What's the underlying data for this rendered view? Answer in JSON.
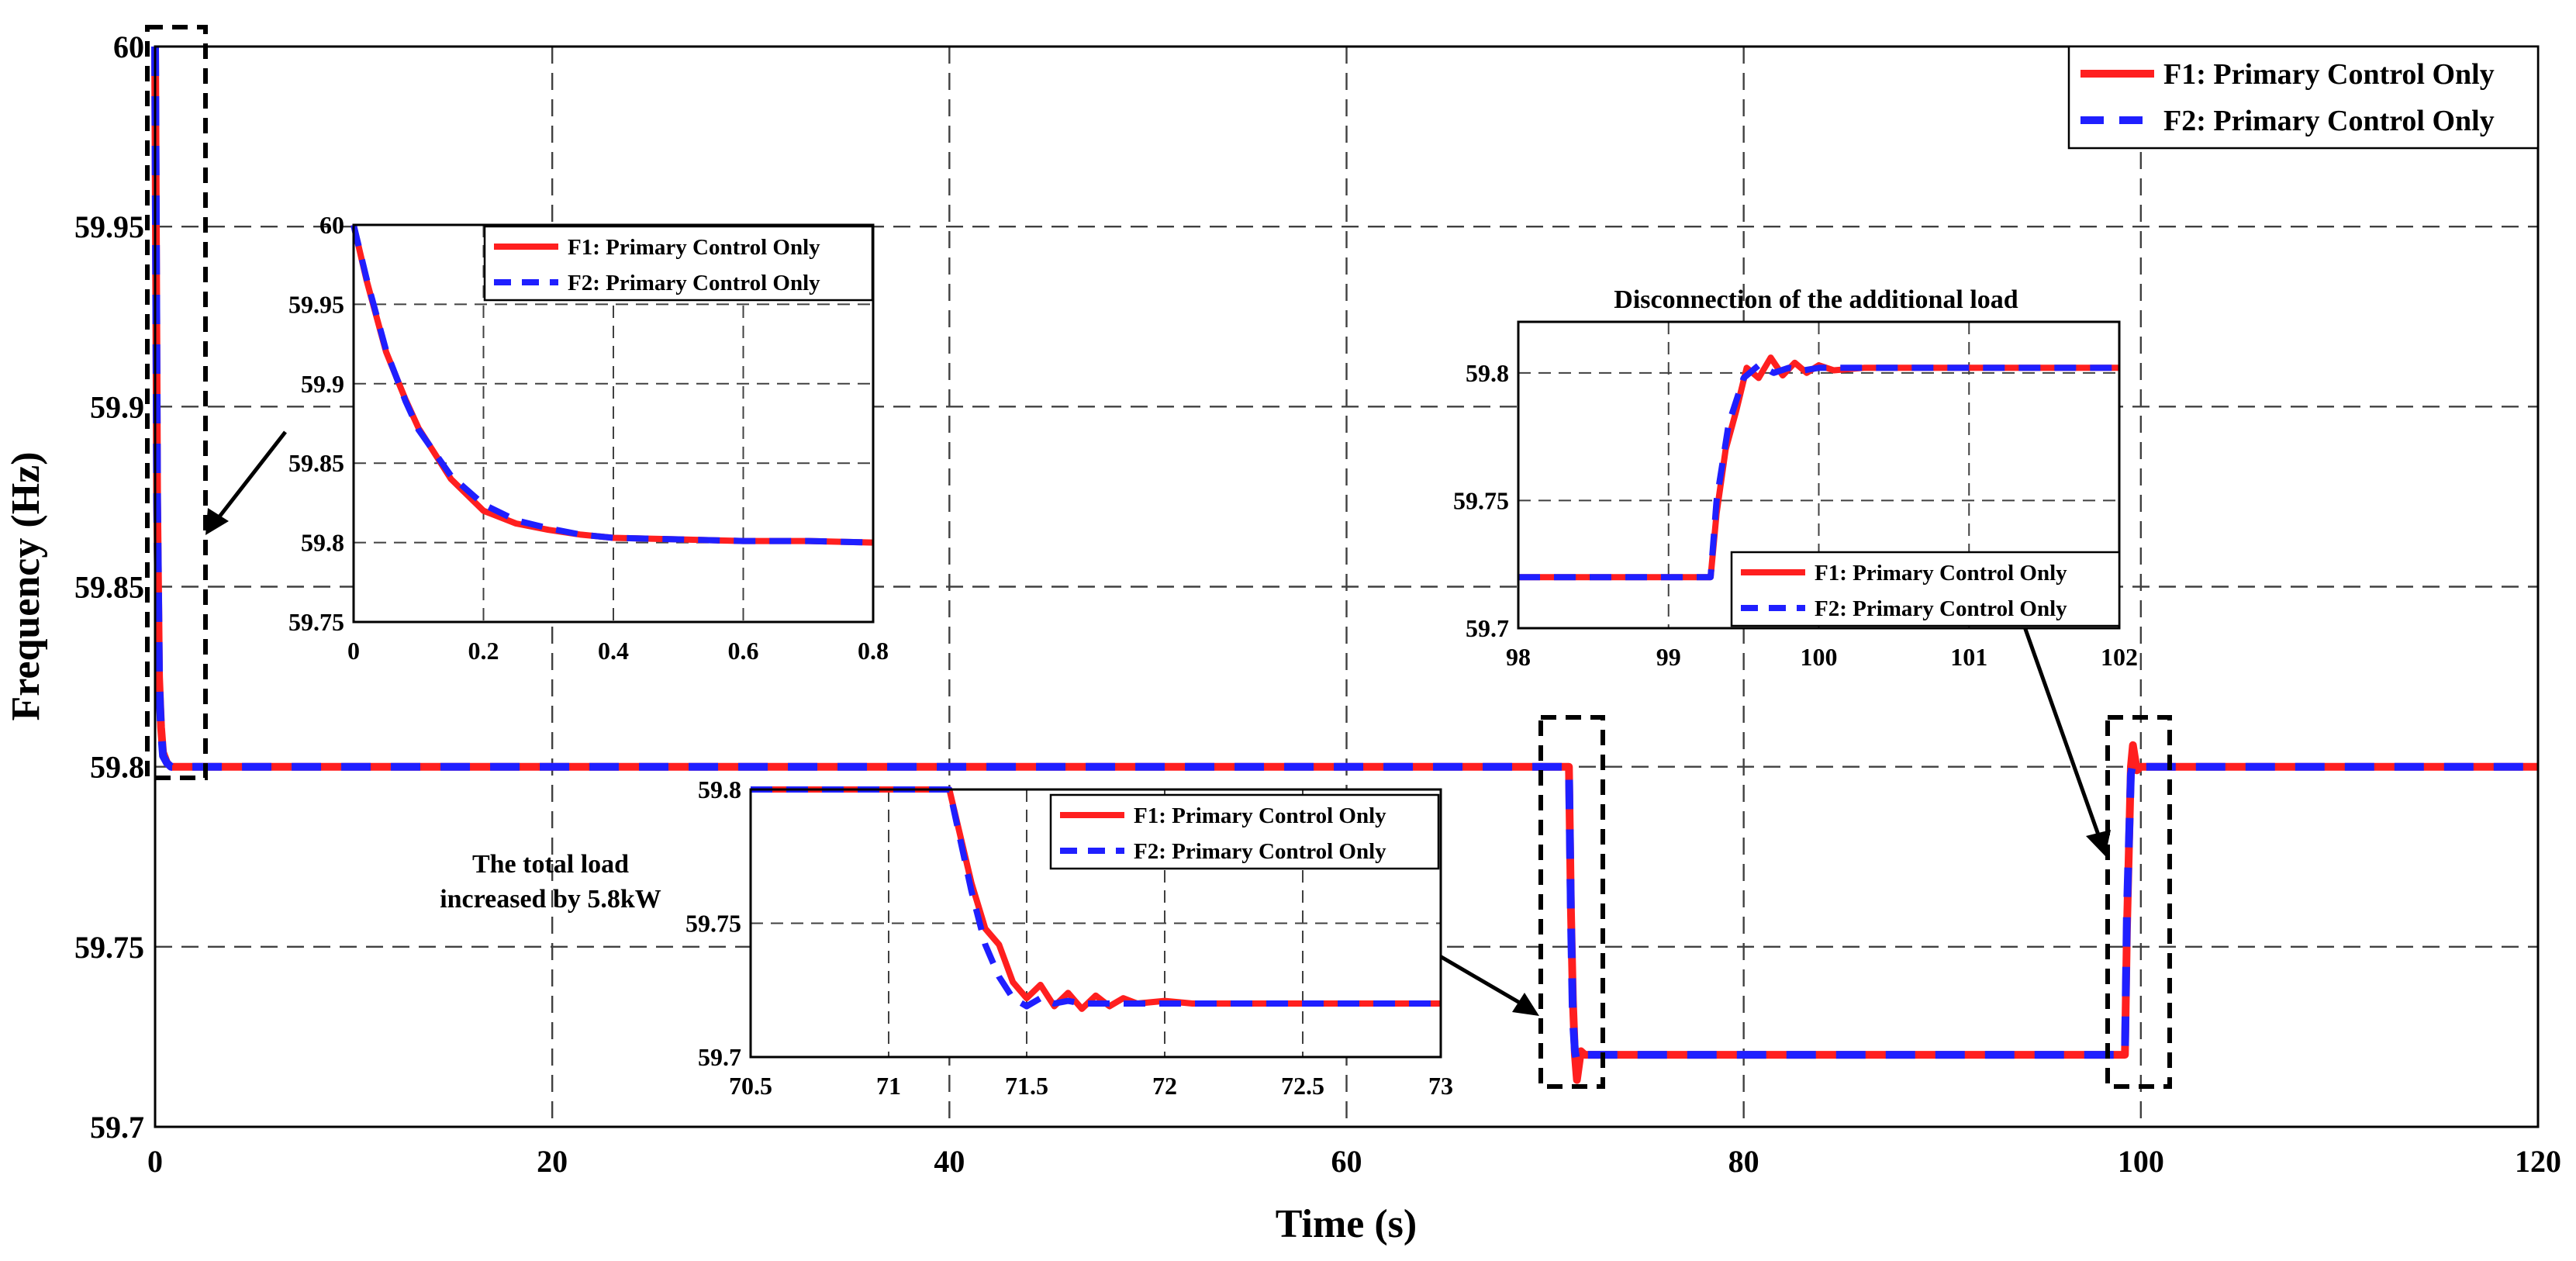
{
  "chart_data": [
    {
      "id": "main",
      "type": "line",
      "title": "",
      "xlabel": "Time (s)",
      "ylabel": "Frequency (Hz)",
      "xlim": [
        0,
        120
      ],
      "ylim": [
        59.7,
        60
      ],
      "xticks": [
        0,
        20,
        40,
        60,
        80,
        100,
        120
      ],
      "yticks": [
        59.7,
        59.75,
        59.8,
        59.85,
        59.9,
        59.95,
        60
      ],
      "ytick_labels": [
        "59.7",
        "59.75",
        "59.8",
        "59.85",
        "59.9",
        "59.95",
        "60"
      ],
      "grid": true,
      "legend_position": "top-right",
      "series": [
        {
          "name": "F1: Primary Control Only",
          "color": "#ff1f1f",
          "style": "solid",
          "x": [
            0,
            0.1,
            0.2,
            0.3,
            0.4,
            0.6,
            0.8,
            71.2,
            71.3,
            71.4,
            71.5,
            71.6,
            71.8,
            72.0,
            99.2,
            99.3,
            99.5,
            99.6,
            99.8,
            100.0,
            120
          ],
          "y": [
            60,
            59.875,
            59.825,
            59.811,
            59.804,
            59.801,
            59.8,
            59.8,
            59.76,
            59.735,
            59.72,
            59.713,
            59.721,
            59.72,
            59.72,
            59.755,
            59.8,
            59.806,
            59.799,
            59.8,
            59.8
          ]
        },
        {
          "name": "F2: Primary Control Only",
          "color": "#1f1fff",
          "style": "dashed",
          "x": [
            0,
            0.1,
            0.2,
            0.3,
            0.4,
            0.6,
            0.8,
            71.2,
            71.3,
            71.4,
            71.5,
            71.6,
            71.8,
            72.0,
            99.2,
            99.3,
            99.5,
            99.6,
            99.8,
            100.0,
            120
          ],
          "y": [
            60,
            59.874,
            59.824,
            59.81,
            59.803,
            59.801,
            59.8,
            59.8,
            59.758,
            59.73,
            59.721,
            59.718,
            59.72,
            59.72,
            59.72,
            59.76,
            59.798,
            59.801,
            59.8,
            59.8,
            59.8
          ]
        }
      ]
    },
    {
      "id": "inset-start",
      "type": "line",
      "title": "",
      "xlim": [
        0,
        0.8
      ],
      "ylim": [
        59.75,
        60
      ],
      "xticks": [
        0,
        0.2,
        0.4,
        0.6,
        0.8
      ],
      "yticks": [
        59.75,
        59.8,
        59.85,
        59.9,
        59.95,
        60
      ],
      "ytick_labels": [
        "59.75",
        "59.8",
        "59.85",
        "59.9",
        "59.95",
        "60"
      ],
      "grid": true,
      "legend_position": "top-right",
      "series": [
        {
          "name": "F1: Primary Control Only",
          "color": "#ff1f1f",
          "style": "solid",
          "x": [
            0,
            0.02,
            0.05,
            0.08,
            0.1,
            0.15,
            0.2,
            0.25,
            0.3,
            0.35,
            0.4,
            0.5,
            0.6,
            0.7,
            0.8
          ],
          "y": [
            60,
            59.965,
            59.92,
            59.89,
            59.872,
            59.84,
            59.82,
            59.812,
            59.808,
            59.805,
            59.803,
            59.802,
            59.801,
            59.801,
            59.8
          ]
        },
        {
          "name": "F2: Primary Control Only",
          "color": "#1f1fff",
          "style": "dashed",
          "x": [
            0,
            0.02,
            0.05,
            0.08,
            0.1,
            0.15,
            0.2,
            0.25,
            0.3,
            0.35,
            0.4,
            0.5,
            0.6,
            0.7,
            0.8
          ],
          "y": [
            60,
            59.966,
            59.921,
            59.889,
            59.871,
            59.842,
            59.824,
            59.814,
            59.809,
            59.805,
            59.803,
            59.802,
            59.801,
            59.801,
            59.8
          ]
        }
      ]
    },
    {
      "id": "inset-load-increase",
      "type": "line",
      "title": "",
      "xlim": [
        70.5,
        73
      ],
      "ylim": [
        59.7,
        59.8
      ],
      "xticks": [
        70.5,
        71,
        71.5,
        72,
        72.5,
        73
      ],
      "yticks": [
        59.7,
        59.75,
        59.8
      ],
      "ytick_labels": [
        "59.7",
        "59.75",
        "59.8"
      ],
      "grid": true,
      "legend_position": "top-right",
      "series": [
        {
          "name": "F1: Primary Control Only",
          "color": "#ff1f1f",
          "style": "solid",
          "x": [
            70.5,
            71.22,
            71.3,
            71.35,
            71.4,
            71.45,
            71.5,
            71.55,
            71.6,
            71.65,
            71.7,
            71.75,
            71.8,
            71.85,
            71.9,
            72.0,
            72.1,
            73
          ],
          "y": [
            59.8,
            59.8,
            59.765,
            59.748,
            59.742,
            59.728,
            59.722,
            59.727,
            59.719,
            59.724,
            59.718,
            59.723,
            59.719,
            59.722,
            59.72,
            59.721,
            59.72,
            59.72
          ]
        },
        {
          "name": "F2: Primary Control Only",
          "color": "#1f1fff",
          "style": "dashed",
          "x": [
            70.5,
            71.22,
            71.3,
            71.35,
            71.4,
            71.45,
            71.5,
            71.55,
            71.6,
            71.65,
            71.7,
            71.8,
            71.9,
            72.0,
            73
          ],
          "y": [
            59.8,
            59.8,
            59.762,
            59.742,
            59.73,
            59.722,
            59.719,
            59.722,
            59.72,
            59.721,
            59.72,
            59.72,
            59.72,
            59.72,
            59.72
          ]
        }
      ]
    },
    {
      "id": "inset-load-disconnect",
      "type": "line",
      "title": "Disconnection of the additional load",
      "xlim": [
        98,
        102
      ],
      "ylim": [
        59.7,
        59.82
      ],
      "xticks": [
        98,
        99,
        100,
        101,
        102
      ],
      "yticks": [
        59.7,
        59.75,
        59.8
      ],
      "ytick_labels": [
        "59.7",
        "59.75",
        "59.8"
      ],
      "grid": true,
      "legend_position": "bottom-right",
      "series": [
        {
          "name": "F1: Primary Control Only",
          "color": "#ff1f1f",
          "style": "solid",
          "x": [
            98,
            99.28,
            99.32,
            99.38,
            99.45,
            99.52,
            99.6,
            99.68,
            99.76,
            99.84,
            99.92,
            100.0,
            100.1,
            100.3,
            102
          ],
          "y": [
            59.72,
            59.72,
            59.745,
            59.77,
            59.785,
            59.802,
            59.798,
            59.806,
            59.799,
            59.804,
            59.8,
            59.803,
            59.801,
            59.802,
            59.802
          ]
        },
        {
          "name": "F2: Primary Control Only",
          "color": "#1f1fff",
          "style": "dashed",
          "x": [
            98,
            99.28,
            99.32,
            99.4,
            99.5,
            99.6,
            99.7,
            99.8,
            99.9,
            100.0,
            100.2,
            102
          ],
          "y": [
            59.72,
            59.72,
            59.75,
            59.78,
            59.798,
            59.803,
            59.8,
            59.802,
            59.801,
            59.802,
            59.802,
            59.802
          ]
        }
      ]
    }
  ],
  "annotations": {
    "load_increase_line1": "The total load",
    "load_increase_line2": "increased by 5.8kW"
  }
}
